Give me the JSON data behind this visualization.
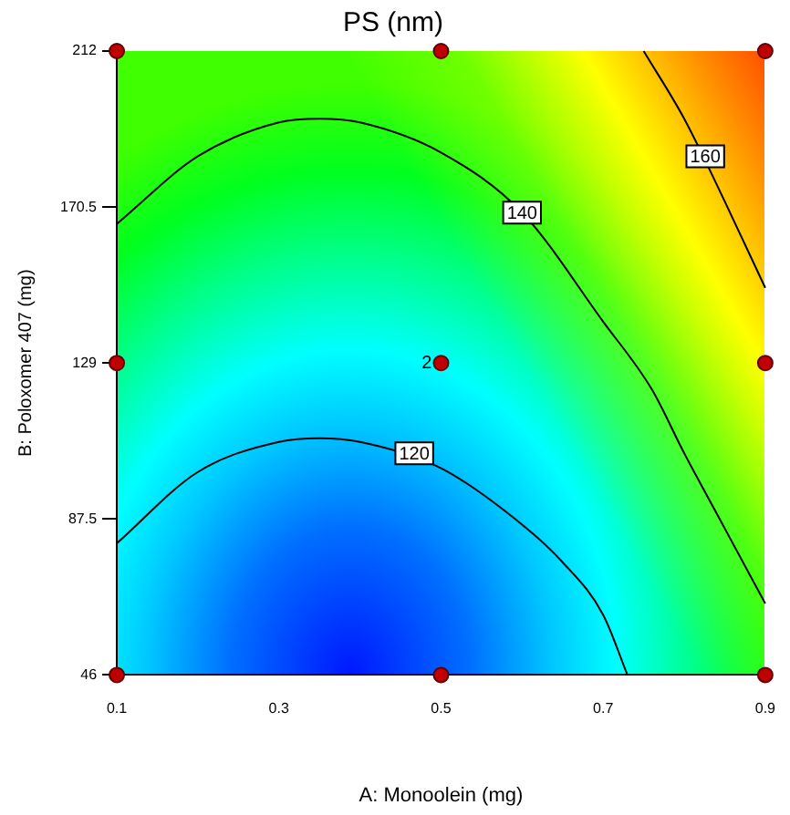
{
  "chart_data": {
    "type": "scatter",
    "title": "PS (nm)",
    "xlabel": "A: Monoolein (mg)",
    "ylabel": "B: Poloxomer 407 (mg)",
    "xlim": [
      0.1,
      0.9
    ],
    "xticks": [
      0.1,
      0.3,
      0.5,
      0.7,
      0.9
    ],
    "ylim": [
      46,
      212
    ],
    "yticks": [
      46,
      87.5,
      129,
      170.5,
      212
    ],
    "grid": false,
    "legend": false,
    "series": [
      {
        "type": "line",
        "color": "#000000",
        "marker": "none",
        "line_style": "solid",
        "x": [
          0.1,
          0.2,
          0.3,
          0.35,
          0.4,
          0.5,
          0.6,
          0.65,
          0.7,
          0.73
        ],
        "values": [
          81,
          100,
          108,
          109,
          108,
          101,
          86,
          76,
          62,
          46
        ]
      },
      {
        "type": "line",
        "color": "#000000",
        "marker": "none",
        "line_style": "solid",
        "x": [
          0.1,
          0.2,
          0.3,
          0.35,
          0.4,
          0.5,
          0.6,
          0.7,
          0.76,
          0.8,
          0.85,
          0.9
        ],
        "values": [
          166,
          184,
          193,
          194,
          193,
          185,
          169,
          140,
          122,
          105,
          85,
          65
        ]
      },
      {
        "type": "line",
        "color": "#000000",
        "marker": "none",
        "line_style": "solid",
        "x": [
          0.75,
          0.8,
          0.85,
          0.9
        ],
        "values": [
          212,
          194,
          172,
          149
        ]
      },
      {
        "type": "scatter",
        "color": "#c00000",
        "marker": "circle",
        "x": [
          0.1,
          0.5,
          0.9,
          0.1,
          0.5,
          0.9,
          0.1,
          0.5,
          0.9
        ],
        "values": [
          46,
          46,
          46,
          129,
          129,
          129,
          212,
          212,
          212
        ]
      }
    ],
    "annotations": [
      {
        "text": "120",
        "x": 0.467,
        "y": 105
      },
      {
        "text": "140",
        "x": 0.6,
        "y": 169
      },
      {
        "text": "160",
        "x": 0.826,
        "y": 184
      },
      {
        "text": "2",
        "x": 0.5,
        "y": 129
      }
    ]
  }
}
